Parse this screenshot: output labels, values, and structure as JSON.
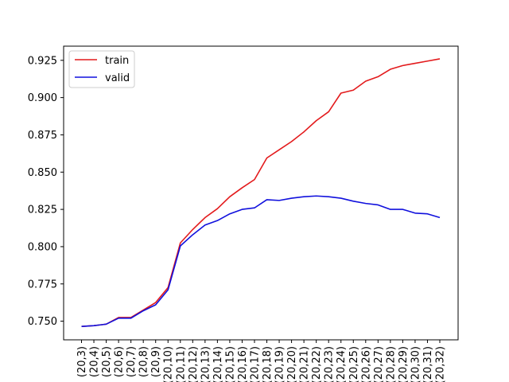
{
  "chart_data": {
    "type": "line",
    "title": "",
    "xlabel": "",
    "ylabel": "",
    "categories": [
      "(20,3)",
      "(20,4)",
      "(20,5)",
      "(20,6)",
      "(20,7)",
      "(20,8)",
      "(20,9)",
      "(20,10)",
      "(20,11)",
      "(20,12)",
      "(20,13)",
      "(20,14)",
      "(20,15)",
      "(20,16)",
      "(20,17)",
      "(20,18)",
      "(20,19)",
      "(20,20)",
      "(20,21)",
      "(20,22)",
      "(20,23)",
      "(20,24)",
      "(20,25)",
      "(20,26)",
      "(20,27)",
      "(20,28)",
      "(20,29)",
      "(20,30)",
      "(20,31)",
      "(20,32)"
    ],
    "ylim": [
      0.7375,
      0.9345
    ],
    "yticks": [
      0.75,
      0.775,
      0.8,
      0.825,
      0.85,
      0.875,
      0.9,
      0.925
    ],
    "ytick_labels": [
      "0.750",
      "0.775",
      "0.800",
      "0.825",
      "0.850",
      "0.875",
      "0.900",
      "0.925"
    ],
    "grid": false,
    "legend_position": "top-left",
    "series": [
      {
        "name": "train",
        "color": "#e31a1c",
        "values": [
          0.7465,
          0.747,
          0.748,
          0.7525,
          0.7525,
          0.7575,
          0.7625,
          0.7725,
          0.8025,
          0.8115,
          0.8195,
          0.8255,
          0.8335,
          0.8395,
          0.845,
          0.8595,
          0.865,
          0.8705,
          0.877,
          0.8845,
          0.8905,
          0.903,
          0.905,
          0.911,
          0.914,
          0.919,
          0.9215,
          0.923,
          0.9245,
          0.926
        ]
      },
      {
        "name": "valid",
        "color": "#1010dd",
        "values": [
          0.7465,
          0.747,
          0.748,
          0.752,
          0.752,
          0.757,
          0.761,
          0.771,
          0.8005,
          0.808,
          0.8145,
          0.8175,
          0.822,
          0.825,
          0.826,
          0.8315,
          0.831,
          0.8325,
          0.8335,
          0.834,
          0.8335,
          0.8325,
          0.8305,
          0.829,
          0.828,
          0.825,
          0.825,
          0.8225,
          0.822,
          0.8195
        ]
      }
    ]
  }
}
